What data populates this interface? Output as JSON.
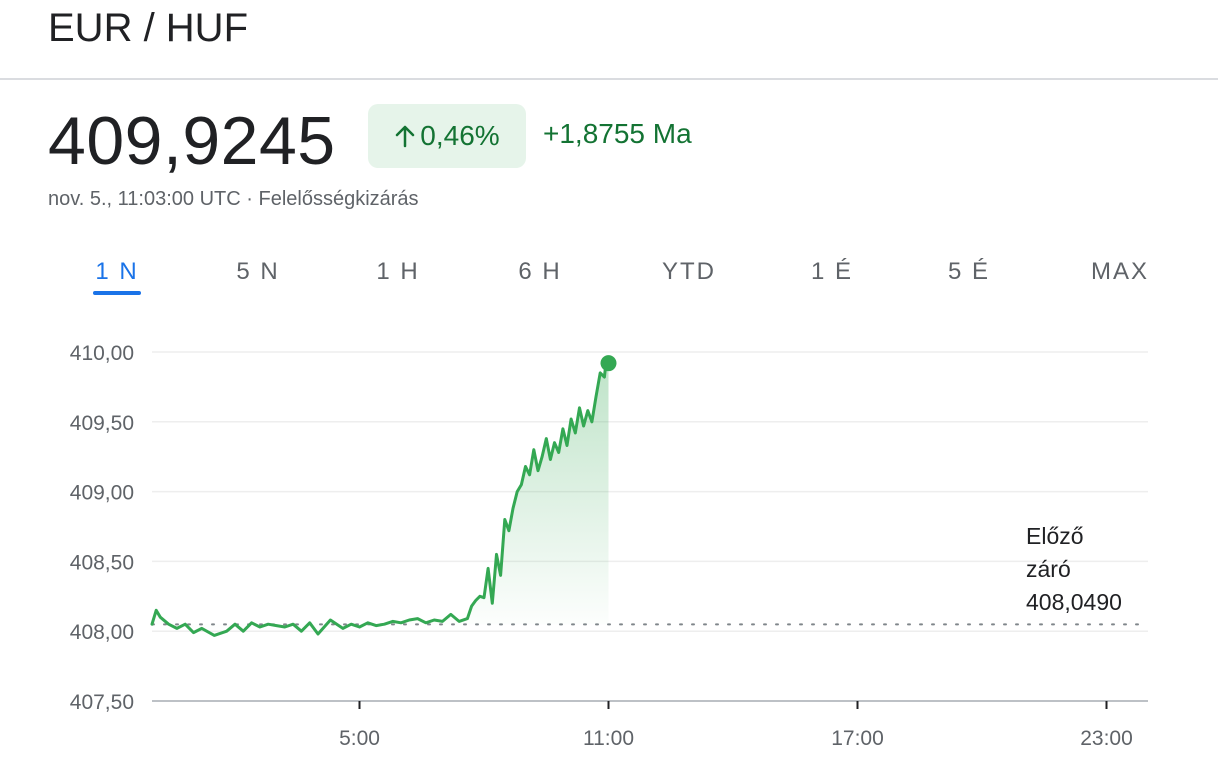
{
  "header": {
    "title": "EUR / HUF"
  },
  "quote": {
    "price": "409,9245",
    "change_percent": "0,46%",
    "change_direction": "up",
    "change_abs": "+1,8755 Ma",
    "timestamp": "nov. 5., 11:03:00 UTC",
    "separator": " · ",
    "disclaimer_label": "Felelősségkizárás"
  },
  "tabs": [
    {
      "label": "1 N",
      "active": true
    },
    {
      "label": "5 N",
      "active": false
    },
    {
      "label": "1 H",
      "active": false
    },
    {
      "label": "6 H",
      "active": false
    },
    {
      "label": "YTD",
      "active": false
    },
    {
      "label": "1 É",
      "active": false
    },
    {
      "label": "5 É",
      "active": false
    },
    {
      "label": "MAX",
      "active": false
    }
  ],
  "prev_close": {
    "label_line1": "Előző",
    "label_line2": "záró",
    "value": "408,0490"
  },
  "colors": {
    "up": "#137333",
    "line": "#34a853",
    "accent": "#1a73e8",
    "pill_bg": "#e6f4ea"
  },
  "chart_data": {
    "type": "line",
    "x_unit": "hour (UTC)",
    "xlim": [
      0,
      24
    ],
    "ylim": [
      407.5,
      410.0
    ],
    "y_ticks": [
      "410,00",
      "409,50",
      "409,00",
      "408,50",
      "408,00",
      "407,50"
    ],
    "y_tick_values": [
      410.0,
      409.5,
      409.0,
      408.5,
      408.0,
      407.5
    ],
    "x_ticks": [
      "5:00",
      "11:00",
      "17:00",
      "23:00"
    ],
    "x_tick_values": [
      5,
      11,
      17,
      23
    ],
    "reference_line": 408.049,
    "grid": true,
    "x": [
      0.0,
      0.1,
      0.2,
      0.4,
      0.6,
      0.8,
      1.0,
      1.2,
      1.5,
      1.8,
      2.0,
      2.2,
      2.4,
      2.6,
      2.8,
      3.0,
      3.2,
      3.4,
      3.6,
      3.8,
      4.0,
      4.3,
      4.6,
      4.8,
      5.0,
      5.2,
      5.4,
      5.6,
      5.8,
      6.0,
      6.2,
      6.4,
      6.6,
      6.8,
      7.0,
      7.2,
      7.4,
      7.6,
      7.7,
      7.8,
      7.9,
      8.0,
      8.1,
      8.2,
      8.3,
      8.4,
      8.5,
      8.6,
      8.7,
      8.8,
      8.9,
      9.0,
      9.1,
      9.2,
      9.3,
      9.4,
      9.5,
      9.6,
      9.7,
      9.8,
      9.9,
      10.0,
      10.1,
      10.2,
      10.3,
      10.4,
      10.5,
      10.6,
      10.7,
      10.8,
      10.9,
      10.95,
      11.0
    ],
    "y": [
      408.05,
      408.15,
      408.1,
      408.05,
      408.02,
      408.05,
      407.99,
      408.02,
      407.97,
      408.0,
      408.05,
      408.0,
      408.06,
      408.03,
      408.05,
      408.04,
      408.03,
      408.05,
      408.0,
      408.06,
      407.98,
      408.08,
      408.02,
      408.05,
      408.03,
      408.06,
      408.04,
      408.05,
      408.07,
      408.06,
      408.08,
      408.09,
      408.06,
      408.08,
      408.07,
      408.12,
      408.07,
      408.09,
      408.18,
      408.22,
      408.25,
      408.24,
      408.45,
      408.2,
      408.55,
      408.4,
      408.8,
      408.72,
      408.88,
      409.0,
      409.05,
      409.18,
      409.12,
      409.3,
      409.15,
      409.25,
      409.38,
      409.23,
      409.35,
      409.28,
      409.45,
      409.33,
      409.52,
      409.42,
      409.6,
      409.47,
      409.58,
      409.5,
      409.68,
      409.85,
      409.82,
      409.95,
      409.92
    ],
    "last_point_marker": true
  }
}
